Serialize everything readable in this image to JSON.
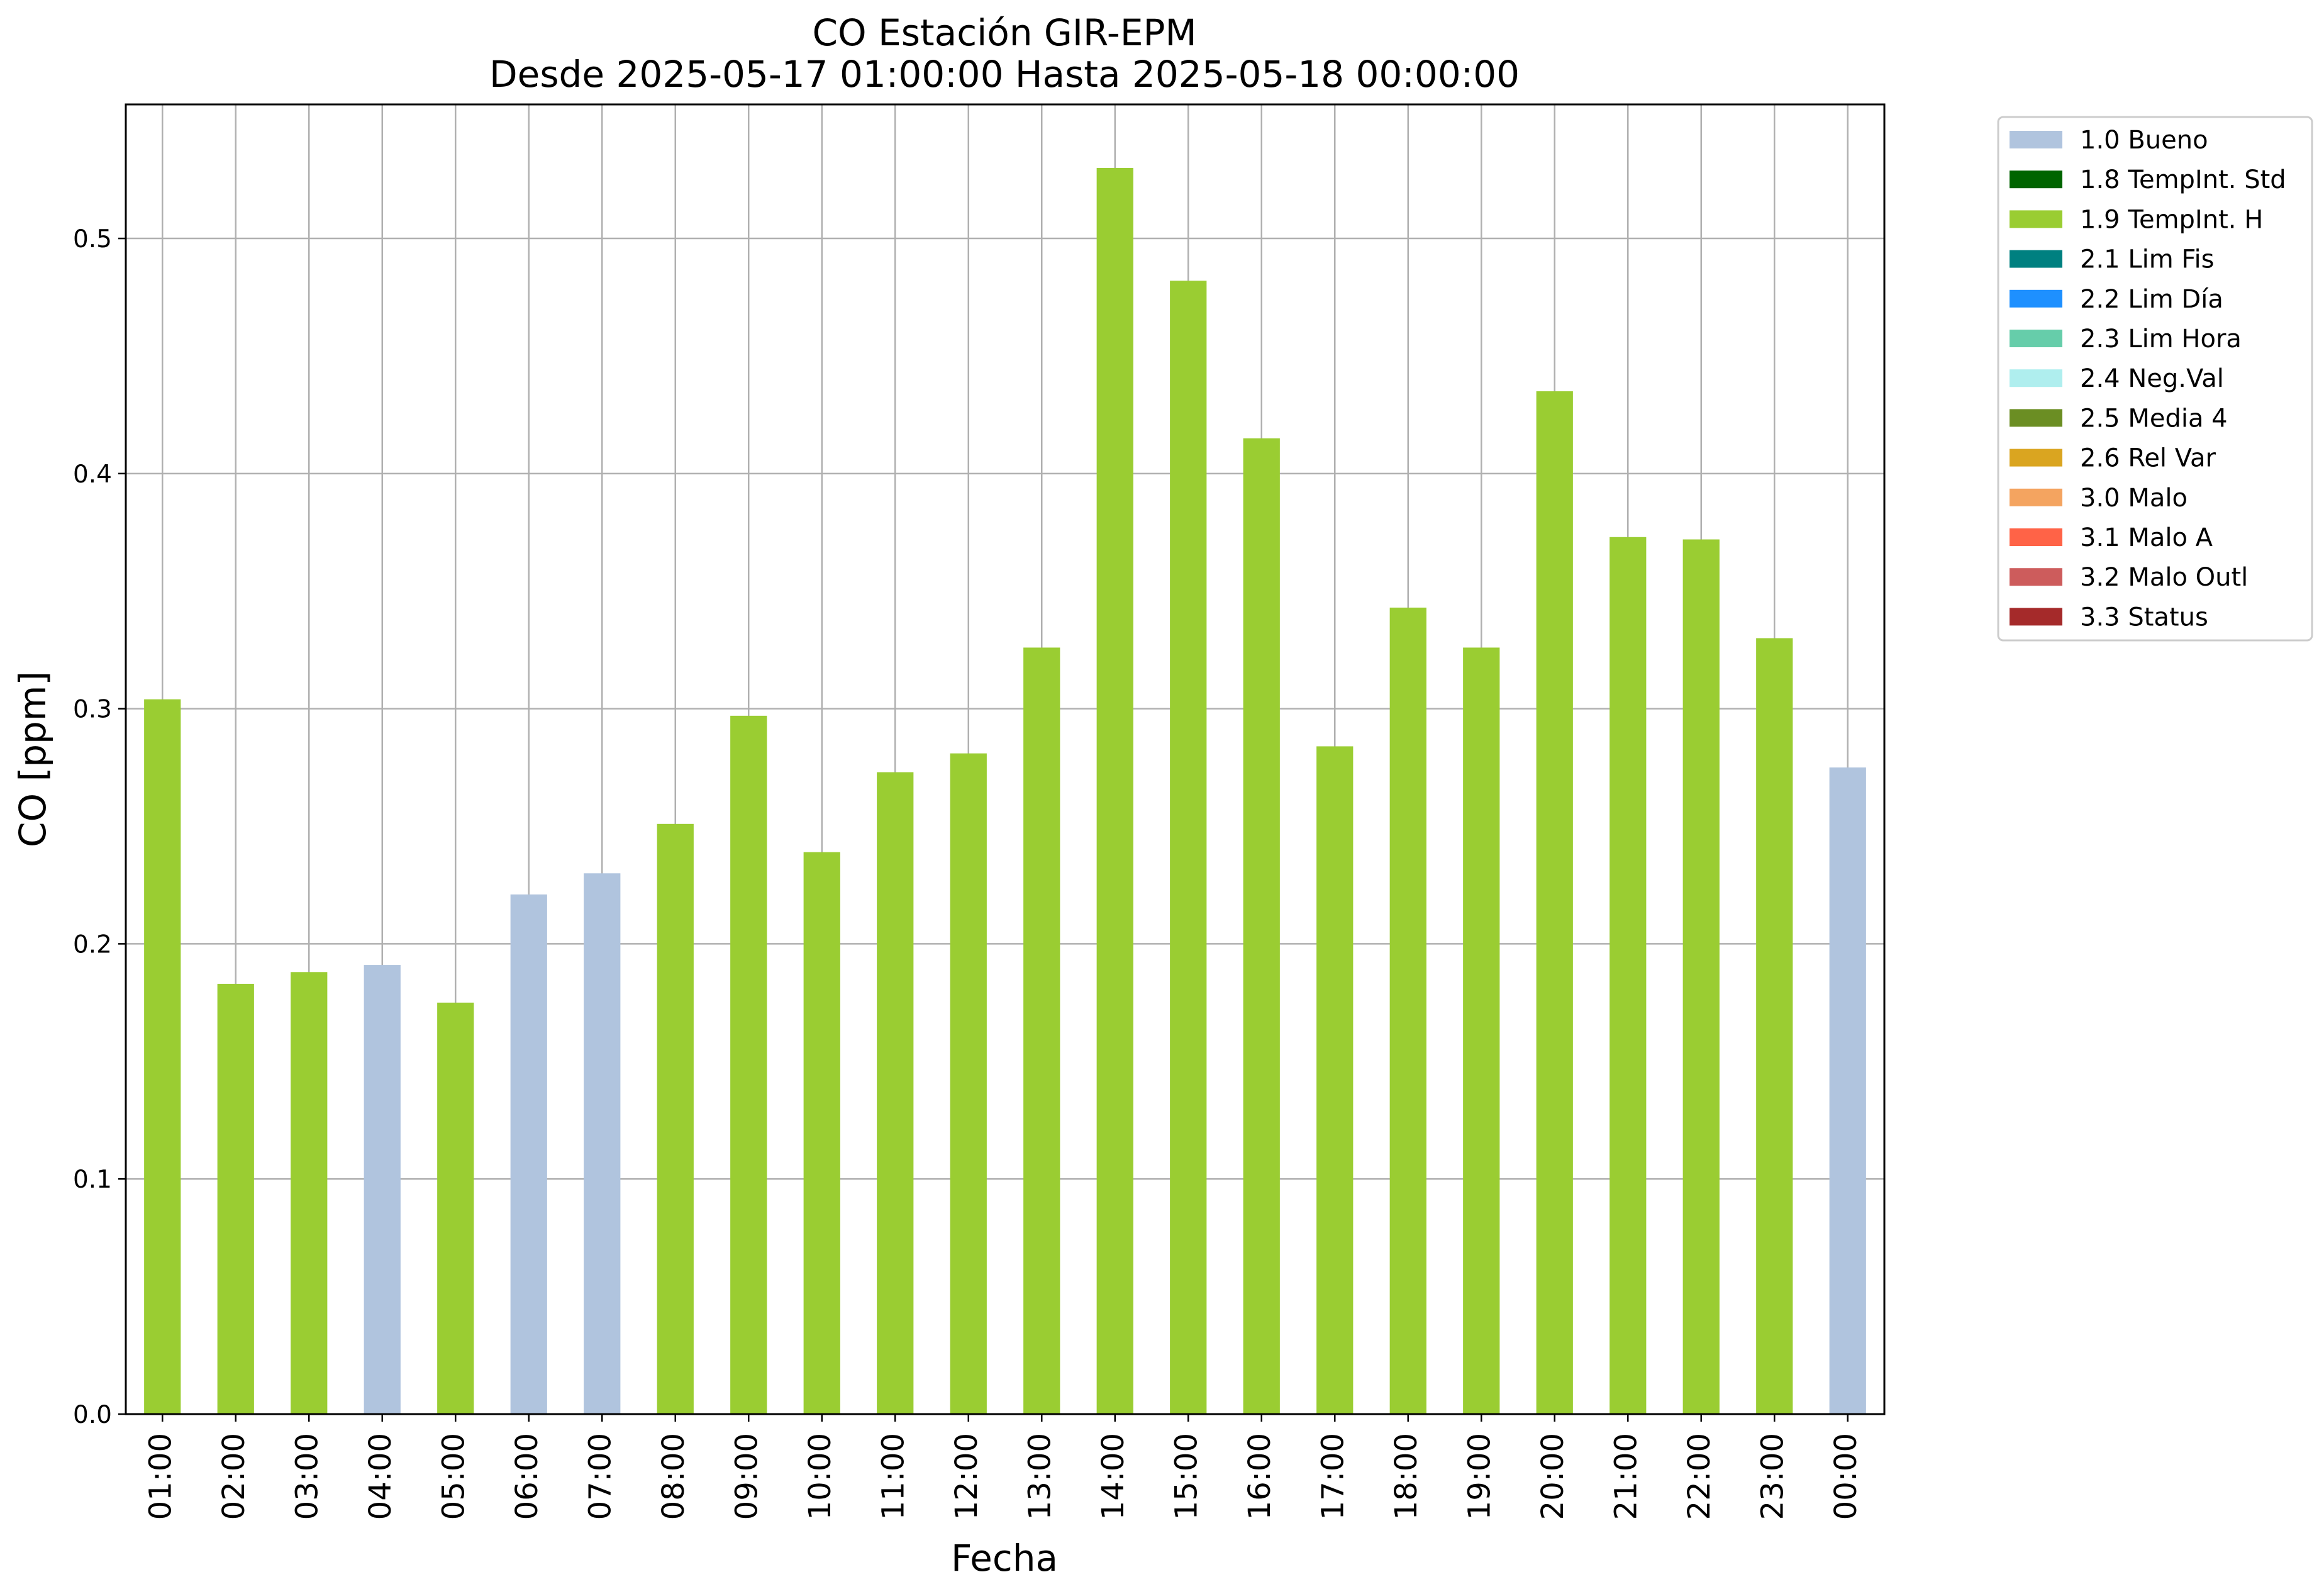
{
  "chart_data": {
    "type": "bar",
    "title": "CO Estación GIR-EPM",
    "subtitle": "Desde 2025-05-17 01:00:00 Hasta 2025-05-18 00:00:00",
    "xlabel": "Fecha",
    "ylabel": "CO [ppm]",
    "ylim": [
      0,
      0.557
    ],
    "yticks": [
      "0.0",
      "0.1",
      "0.2",
      "0.3",
      "0.4",
      "0.5"
    ],
    "grid": true,
    "legend_position": "outside-right",
    "categories": [
      "01:00",
      "02:00",
      "03:00",
      "04:00",
      "05:00",
      "06:00",
      "07:00",
      "08:00",
      "09:00",
      "10:00",
      "11:00",
      "12:00",
      "13:00",
      "14:00",
      "15:00",
      "16:00",
      "17:00",
      "18:00",
      "19:00",
      "20:00",
      "21:00",
      "22:00",
      "23:00",
      "00:00"
    ],
    "values": [
      0.304,
      0.183,
      0.188,
      0.191,
      0.175,
      0.221,
      0.23,
      0.251,
      0.297,
      0.239,
      0.273,
      0.281,
      0.326,
      0.53,
      0.482,
      0.415,
      0.284,
      0.343,
      0.326,
      0.435,
      0.373,
      0.372,
      0.33,
      0.275
    ],
    "flags": [
      "1.9 TempInt. H",
      "1.9 TempInt. H",
      "1.9 TempInt. H",
      "1.0 Bueno",
      "1.9 TempInt. H",
      "1.0 Bueno",
      "1.0 Bueno",
      "1.9 TempInt. H",
      "1.9 TempInt. H",
      "1.9 TempInt. H",
      "1.9 TempInt. H",
      "1.9 TempInt. H",
      "1.9 TempInt. H",
      "1.9 TempInt. H",
      "1.9 TempInt. H",
      "1.9 TempInt. H",
      "1.9 TempInt. H",
      "1.9 TempInt. H",
      "1.9 TempInt. H",
      "1.9 TempInt. H",
      "1.9 TempInt. H",
      "1.9 TempInt. H",
      "1.9 TempInt. H",
      "1.0 Bueno"
    ],
    "legend": [
      {
        "label": "1.0 Bueno",
        "color": "#b0c4de"
      },
      {
        "label": "1.8 TempInt. Std",
        "color": "#006400"
      },
      {
        "label": "1.9 TempInt. H",
        "color": "#9acd32"
      },
      {
        "label": "2.1 Lim Fis",
        "color": "#008080"
      },
      {
        "label": "2.2 Lim Día",
        "color": "#1e90ff"
      },
      {
        "label": "2.3 Lim Hora",
        "color": "#66cdaa"
      },
      {
        "label": "2.4 Neg.Val",
        "color": "#afeeee"
      },
      {
        "label": "2.5 Media 4",
        "color": "#6b8e23"
      },
      {
        "label": "2.6 Rel Var",
        "color": "#daa520"
      },
      {
        "label": "3.0 Malo",
        "color": "#f4a460"
      },
      {
        "label": "3.1 Malo A",
        "color": "#ff6347"
      },
      {
        "label": "3.2 Malo Outl",
        "color": "#cd5c5c"
      },
      {
        "label": "3.3 Status",
        "color": "#a52a2a"
      }
    ]
  }
}
